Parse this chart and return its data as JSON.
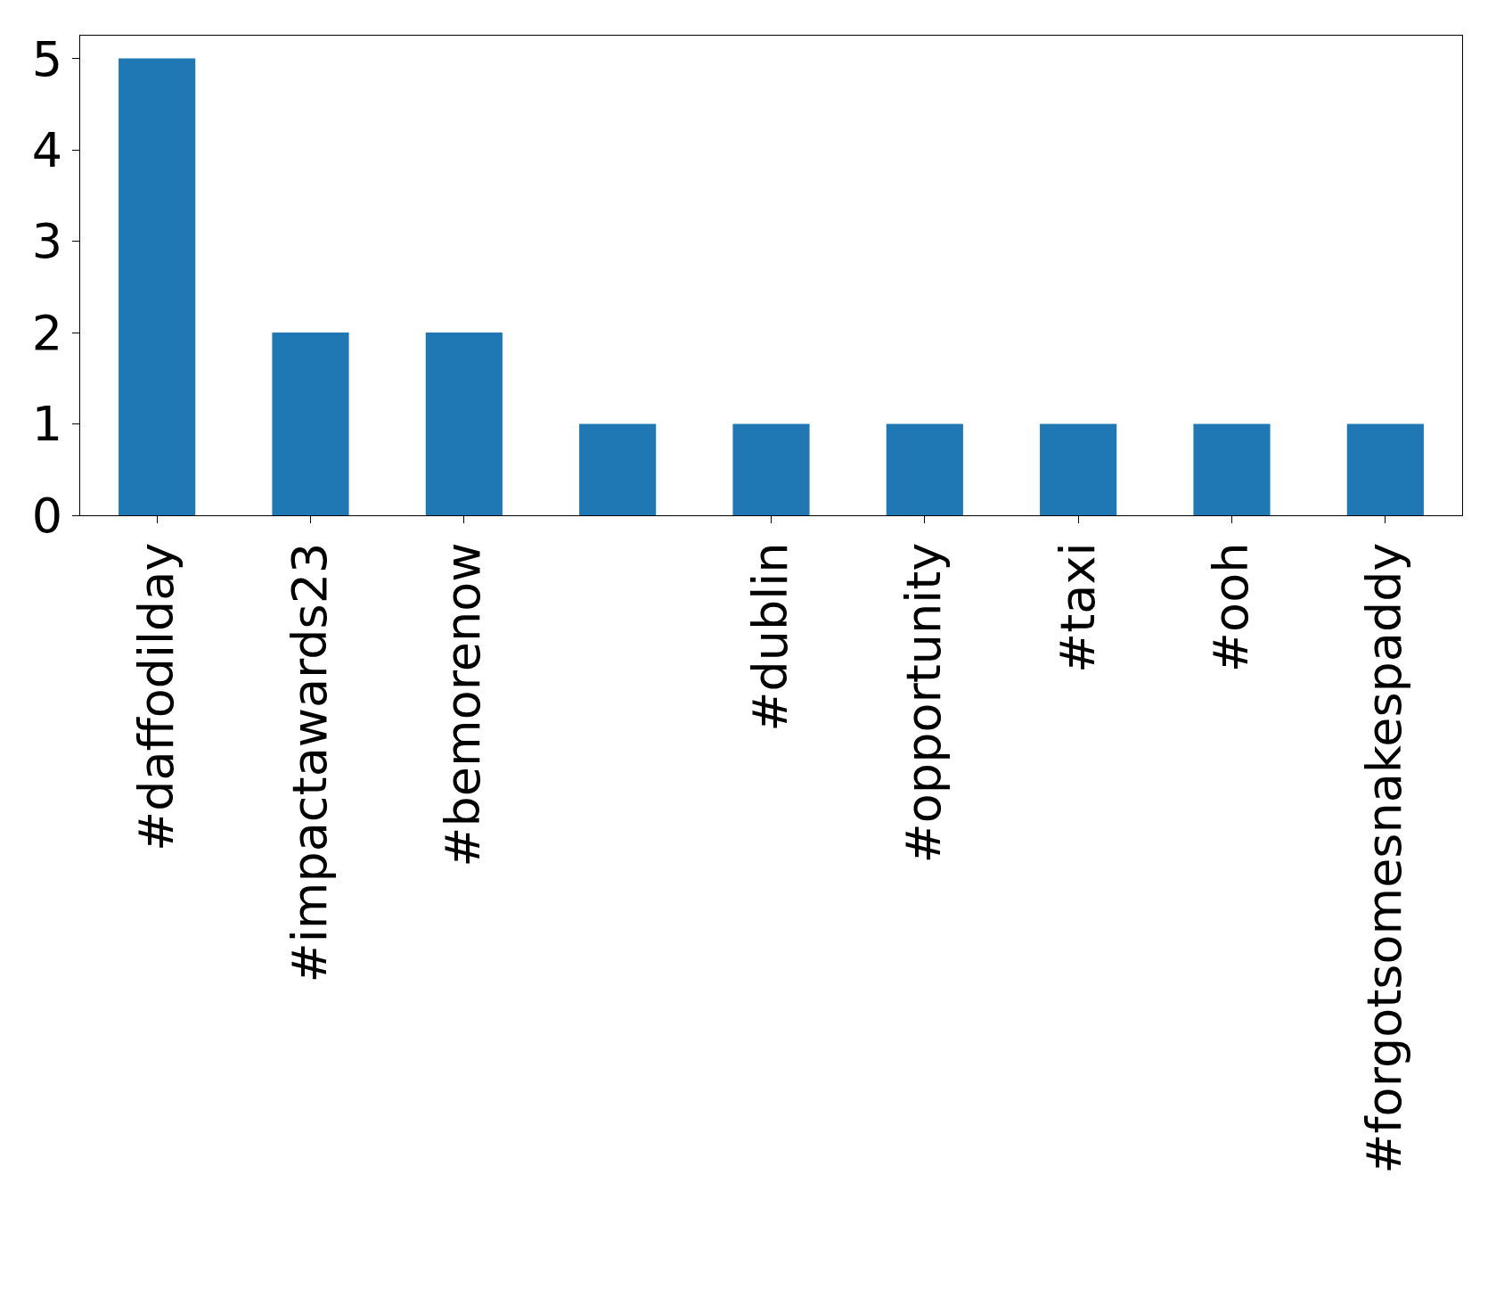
{
  "chart_data": {
    "type": "bar",
    "categories": [
      "#daffodilday",
      "#impactawards23",
      "#bemorenow",
      null,
      "#dublin",
      "#opportunity",
      "#taxi",
      "#ooh",
      "#forgotsomesnakespaddy"
    ],
    "values": [
      5,
      2,
      2,
      1,
      1,
      1,
      1,
      1,
      1
    ],
    "color": "#1f77b4",
    "ylim": [
      0,
      5.25
    ],
    "yticks": [
      0,
      1,
      2,
      3,
      4,
      5
    ]
  }
}
